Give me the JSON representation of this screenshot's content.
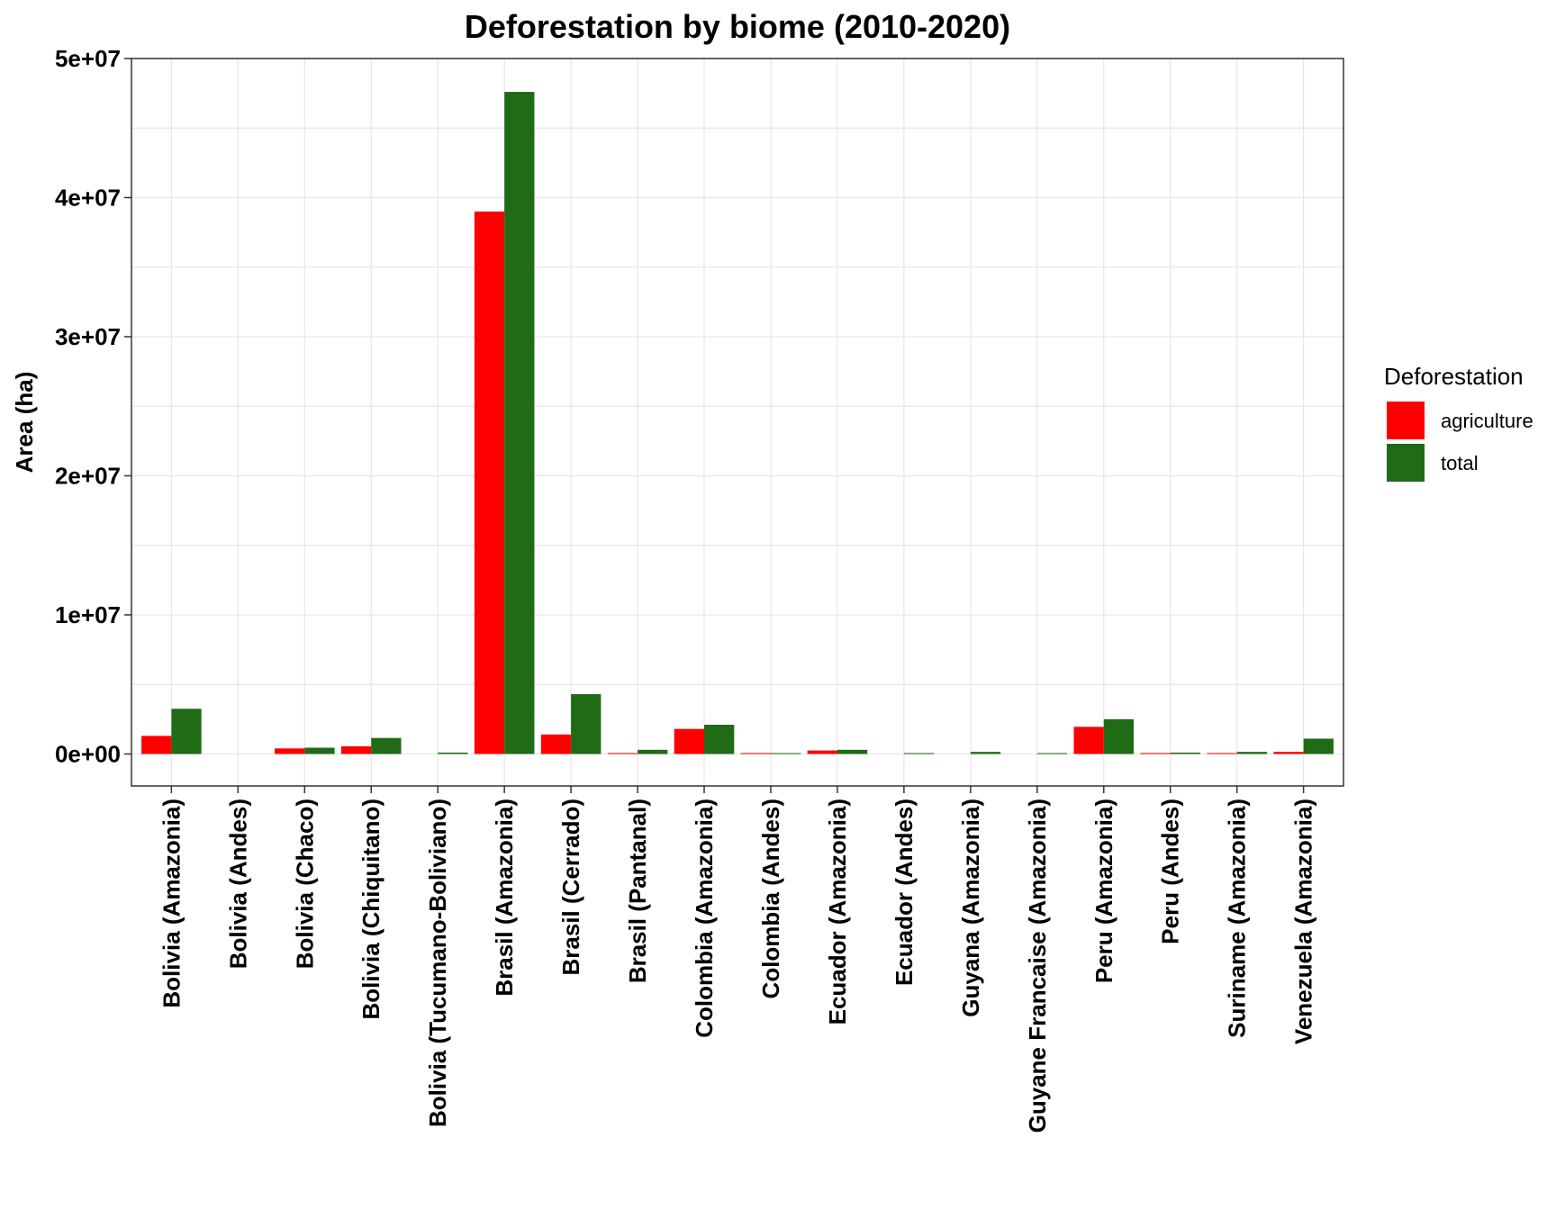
{
  "chart_data": {
    "type": "bar",
    "title": "Deforestation by biome (2010-2020)",
    "xlabel": "",
    "ylabel": "Area (ha)",
    "ylim": [
      -2300000,
      50000000
    ],
    "yticks": [
      0,
      10000000,
      20000000,
      30000000,
      40000000,
      50000000
    ],
    "ytick_labels": [
      "0e+00",
      "1e+07",
      "2e+07",
      "3e+07",
      "4e+07",
      "5e+07"
    ],
    "grid": true,
    "legend": {
      "title": "Deforestation",
      "position": "right"
    },
    "categories": [
      "Bolivia (Amazonia)",
      "Bolivia (Andes)",
      "Bolivia (Chaco)",
      "Bolivia (Chiquitano)",
      "Bolivia (Tucumano-Boliviano)",
      "Brasil (Amazonia)",
      "Brasil (Cerrado)",
      "Brasil (Pantanal)",
      "Colombia (Amazonia)",
      "Colombia (Andes)",
      "Ecuador (Amazonia)",
      "Ecuador (Andes)",
      "Guyana (Amazonia)",
      "Guyane Francaise (Amazonia)",
      "Peru (Amazonia)",
      "Peru (Andes)",
      "Suriname (Amazonia)",
      "Venezuela (Amazonia)"
    ],
    "series": [
      {
        "name": "agriculture",
        "color": "#ff0000",
        "values": [
          1300000,
          0,
          400000,
          550000,
          0,
          39000000,
          1400000,
          40000,
          1800000,
          50000,
          250000,
          0,
          0,
          0,
          1950000,
          40000,
          50000,
          150000
        ]
      },
      {
        "name": "total",
        "color": "#1f6b16",
        "values": [
          3250000,
          0,
          450000,
          1150000,
          100000,
          47600000,
          4300000,
          300000,
          2100000,
          60000,
          300000,
          50000,
          150000,
          50000,
          2500000,
          100000,
          150000,
          1100000
        ]
      }
    ]
  }
}
